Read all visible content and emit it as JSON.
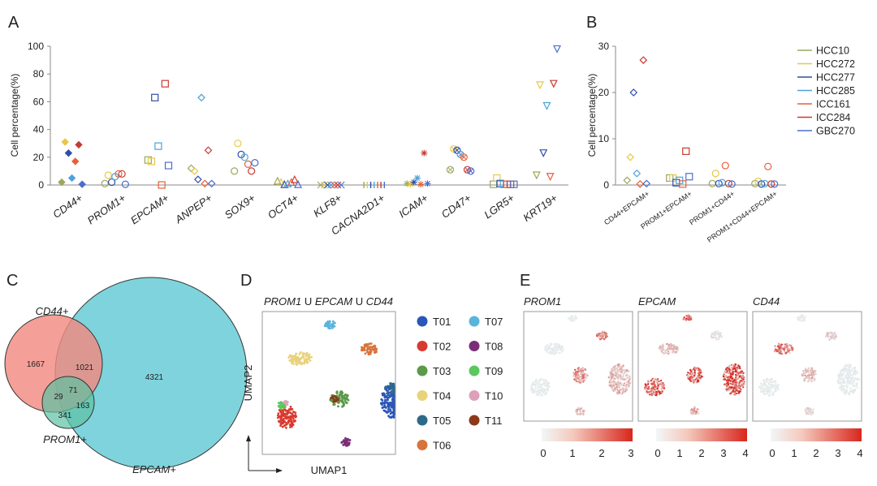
{
  "panel_labels": [
    "A",
    "B",
    "C",
    "D",
    "E"
  ],
  "legend": [
    {
      "name": "HCC10",
      "color": "#9aa85a"
    },
    {
      "name": "HCC272",
      "color": "#e6c84a"
    },
    {
      "name": "HCC277",
      "color": "#2e4ea8"
    },
    {
      "name": "HCC285",
      "color": "#4aa3d8"
    },
    {
      "name": "ICC161",
      "color": "#e6603a"
    },
    {
      "name": "ICC284",
      "color": "#c83a30"
    },
    {
      "name": "GBC270",
      "color": "#4a6ed0"
    }
  ],
  "chart_data": [
    {
      "panel": "A",
      "type": "scatter",
      "ylabel": "Cell percentage(%)",
      "ylim": [
        0,
        100
      ],
      "yticks": [
        0,
        20,
        40,
        60,
        80,
        100
      ],
      "categories": [
        "CD44+",
        "PROM1+",
        "EPCAM+",
        "ANPEP+",
        "SOX9+",
        "OCT4+",
        "KLF8+",
        "CACNA2D1+",
        "ICAM+",
        "CD47+",
        "LGR5+",
        "KRT19+"
      ],
      "series": [
        {
          "name": "HCC10",
          "marker": "diamond",
          "values": [
            2,
            1,
            18,
            12,
            10,
            3,
            0,
            0,
            1,
            11,
            0.5,
            7
          ]
        },
        {
          "name": "HCC272",
          "marker": "diamond",
          "values": [
            31,
            7,
            17,
            10,
            30,
            2,
            0,
            0,
            0.5,
            26,
            5,
            72
          ]
        },
        {
          "name": "HCC277",
          "marker": "diamond",
          "values": [
            23,
            2,
            63,
            4,
            22,
            0.5,
            0,
            0,
            2,
            25,
            1,
            23
          ]
        },
        {
          "name": "HCC285",
          "marker": "diamond",
          "values": [
            5,
            6,
            28,
            63,
            20,
            1,
            0,
            0,
            5,
            22,
            0.5,
            57
          ]
        },
        {
          "name": "ICC161",
          "marker": "diamond",
          "values": [
            17,
            8,
            0,
            1,
            15,
            2,
            0,
            0,
            0.5,
            20,
            0.5,
            6
          ]
        },
        {
          "name": "ICC284",
          "marker": "diamond",
          "values": [
            29,
            8,
            73,
            25,
            10,
            4,
            0,
            0,
            23,
            11,
            0.5,
            73
          ]
        },
        {
          "name": "GBC270",
          "marker": "diamond",
          "values": [
            0.5,
            0.5,
            14,
            1,
            16,
            0.5,
            0,
            0,
            1,
            10,
            0.5,
            98
          ]
        }
      ]
    },
    {
      "panel": "B",
      "type": "scatter",
      "ylabel": "Cell percentage(%)",
      "ylim": [
        0,
        30
      ],
      "yticks": [
        0,
        10,
        20,
        30
      ],
      "categories": [
        "CD44+EPCAM+",
        "PROM1+EPCAM+",
        "PROM1+CD44+",
        "PROM1+CD44+EPCAM+"
      ],
      "series": [
        {
          "name": "HCC10",
          "values": [
            1,
            1.5,
            0.3,
            0.3
          ]
        },
        {
          "name": "HCC272",
          "values": [
            6,
            1.5,
            2.5,
            0.8
          ]
        },
        {
          "name": "HCC277",
          "values": [
            20,
            0.5,
            0.3,
            0.2
          ]
        },
        {
          "name": "HCC285",
          "values": [
            2.5,
            1,
            0.5,
            0.3
          ]
        },
        {
          "name": "ICC161",
          "values": [
            0.2,
            0.2,
            4.2,
            4
          ]
        },
        {
          "name": "ICC284",
          "values": [
            27,
            7.3,
            0.3,
            0.2
          ]
        },
        {
          "name": "GBC270",
          "values": [
            0.3,
            1.8,
            0.2,
            0.2
          ]
        }
      ]
    }
  ],
  "venn": {
    "labels": {
      "cd44": "CD44+",
      "prom1": "PROM1+",
      "epcam": "EPCAM+"
    },
    "counts": {
      "cd44_only": "1667",
      "cd44_epcam": "1021",
      "epcam_only": "4321",
      "all_three": "71",
      "cd44_prom1": "29",
      "prom1_epcam": "163",
      "prom1_only": "341"
    }
  },
  "umap": {
    "title_parts": [
      "PROM1",
      " U ",
      "EPCAM",
      " U ",
      "CD44"
    ],
    "xlabel": "UMAP1",
    "ylabel": "UMAP2",
    "clusters": [
      {
        "name": "T01",
        "color": "#2a56b8"
      },
      {
        "name": "T02",
        "color": "#d83a2e"
      },
      {
        "name": "T03",
        "color": "#5a9a48"
      },
      {
        "name": "T04",
        "color": "#e8d27a"
      },
      {
        "name": "T05",
        "color": "#2e6a88"
      },
      {
        "name": "T06",
        "color": "#d8743a"
      },
      {
        "name": "T07",
        "color": "#5ab4dc"
      },
      {
        "name": "T08",
        "color": "#7a2e78"
      },
      {
        "name": "T09",
        "color": "#5ac85a"
      },
      {
        "name": "T10",
        "color": "#dca0b8"
      },
      {
        "name": "T11",
        "color": "#8a3a1a"
      }
    ]
  },
  "feature_plots": [
    {
      "gene": "PROM1",
      "scale_ticks": [
        "0",
        "1",
        "2",
        "3"
      ],
      "max": 3
    },
    {
      "gene": "EPCAM",
      "scale_ticks": [
        "0",
        "1",
        "2",
        "3",
        "4"
      ],
      "max": 4
    },
    {
      "gene": "CD44",
      "scale_ticks": [
        "0",
        "1",
        "2",
        "3",
        "4"
      ],
      "max": 4
    }
  ]
}
